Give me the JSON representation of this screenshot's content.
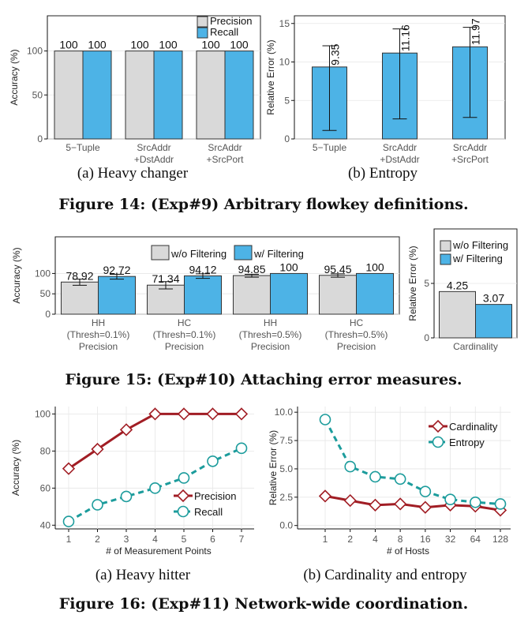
{
  "colors": {
    "gray": "#d9d9d9",
    "blue": "#4db3e6",
    "red": "#a11d24",
    "teal": "#1c9c9c"
  },
  "captions": {
    "fig14a": "(a) Heavy changer",
    "fig14b": "(b) Entropy",
    "fig14": "Figure 14: (Exp#9) Arbitrary flowkey definitions.",
    "fig15": "Figure 15: (Exp#10) Attaching error measures.",
    "fig16a": "(a) Heavy hitter",
    "fig16b": "(b) Cardinality and entropy",
    "fig16": "Figure 16: (Exp#11) Network-wide coordination."
  },
  "chart_data": [
    {
      "id": "fig14a",
      "type": "bar",
      "ylabel": "Accuracy (%)",
      "ylim": [
        0,
        140
      ],
      "yticks": [
        0,
        50,
        100
      ],
      "categories": [
        [
          "5−Tuple"
        ],
        [
          "SrcAddr",
          "+DstAddr"
        ],
        [
          "SrcAddr",
          "+SrcPort"
        ]
      ],
      "series": [
        {
          "name": "Precision",
          "color": "#d9d9d9",
          "values": [
            100,
            100,
            100
          ],
          "labels": [
            "100",
            "100",
            "100"
          ]
        },
        {
          "name": "Recall",
          "color": "#4db3e6",
          "values": [
            100,
            100,
            100
          ],
          "labels": [
            "100",
            "100",
            "100"
          ]
        }
      ],
      "legend": "top-right",
      "grid": true
    },
    {
      "id": "fig14b",
      "type": "bar",
      "ylabel": "Relative Error (%)",
      "ylim": [
        0,
        16
      ],
      "yticks": [
        0,
        5,
        10,
        15
      ],
      "categories": [
        [
          "5−Tuple"
        ],
        [
          "SrcAddr",
          "+DstAddr"
        ],
        [
          "SrcAddr",
          "+SrcPort"
        ]
      ],
      "series": [
        {
          "color": "#4db3e6",
          "values": [
            9.35,
            11.16,
            11.97
          ],
          "labels": [
            "9.35",
            "11.16",
            "11.97"
          ],
          "error_low": [
            1.1,
            2.6,
            2.8
          ],
          "error_high": [
            12.1,
            14.3,
            14.5
          ]
        }
      ],
      "grid": true
    },
    {
      "id": "fig15a",
      "type": "bar",
      "ylabel": "Accuracy (%)",
      "ylim": [
        0,
        190
      ],
      "yticks": [
        0,
        50,
        100
      ],
      "categories": [
        [
          "HH",
          "(Thresh=0.1%)",
          "Precision"
        ],
        [
          "HC",
          "(Thresh=0.1%)",
          "Precision"
        ],
        [
          "HH",
          "(Thresh=0.5%)",
          "Precision"
        ],
        [
          "HC",
          "(Thresh=0.5%)",
          "Precision"
        ]
      ],
      "series": [
        {
          "name": "w/o Filtering",
          "color": "#d9d9d9",
          "values": [
            78.92,
            71.34,
            94.85,
            95.45
          ],
          "labels": [
            "78.92",
            "71.34",
            "94.85",
            "95.45"
          ],
          "error_low": [
            71,
            62,
            91,
            91
          ],
          "error_high": [
            86,
            80,
            98,
            99
          ]
        },
        {
          "name": "w/ Filtering",
          "color": "#4db3e6",
          "values": [
            92.72,
            94.12,
            100,
            100
          ],
          "labels": [
            "92.72",
            "94.12",
            "100",
            "100"
          ],
          "error_low": [
            86,
            88,
            100,
            100
          ],
          "error_high": [
            98,
            99,
            100,
            100
          ]
        }
      ],
      "legend": "top",
      "grid": true
    },
    {
      "id": "fig15b",
      "type": "bar",
      "ylabel": "Relative Error (%)",
      "ylim": [
        0,
        10
      ],
      "yticks": [
        0,
        5
      ],
      "categories": [
        [
          "Cardinality"
        ]
      ],
      "series": [
        {
          "name": "w/o Filtering",
          "color": "#d9d9d9",
          "values": [
            4.25
          ],
          "labels": [
            "4.25"
          ]
        },
        {
          "name": "w/ Filtering",
          "color": "#4db3e6",
          "values": [
            3.07
          ],
          "labels": [
            "3.07"
          ]
        }
      ],
      "legend": "top",
      "grid": true
    },
    {
      "id": "fig16a",
      "type": "line",
      "xlabel": "# of Measurement Points",
      "ylabel": "Accuracy (%)",
      "x": [
        1,
        2,
        3,
        4,
        5,
        6,
        7
      ],
      "xticks": [
        "1",
        "2",
        "3",
        "4",
        "5",
        "6",
        "7"
      ],
      "ylim": [
        38,
        104
      ],
      "yticks": [
        40,
        60,
        80,
        100
      ],
      "series": [
        {
          "name": "Precision",
          "color": "#a11d24",
          "marker": "diamond",
          "style": "solid",
          "values": [
            70.5,
            81,
            91.5,
            100,
            100,
            100,
            100
          ]
        },
        {
          "name": "Recall",
          "color": "#1c9c9c",
          "marker": "circle",
          "style": "dashed",
          "values": [
            42,
            51,
            55.5,
            60,
            65.5,
            74.5,
            81.5
          ]
        }
      ],
      "legend": "bottom-right",
      "grid": true
    },
    {
      "id": "fig16b",
      "type": "line",
      "xlabel": "# of Hosts",
      "ylabel": "Relative Error (%)",
      "x": [
        1,
        2,
        4,
        8,
        16,
        32,
        64,
        128
      ],
      "xticks": [
        "1",
        "2",
        "4",
        "8",
        "16",
        "32",
        "64",
        "128"
      ],
      "ylim": [
        -0.3,
        10.5
      ],
      "yticks": [
        0,
        2.5,
        5,
        7.5,
        10
      ],
      "ytick_labels": [
        "0.0",
        "2.5",
        "5.0",
        "7.5",
        "10.0"
      ],
      "series": [
        {
          "name": "Cardinality",
          "color": "#a11d24",
          "marker": "diamond",
          "style": "solid",
          "values": [
            2.6,
            2.2,
            1.8,
            1.9,
            1.6,
            1.8,
            1.7,
            1.35
          ]
        },
        {
          "name": "Entropy",
          "color": "#1c9c9c",
          "marker": "circle",
          "style": "dashed",
          "values": [
            9.35,
            5.2,
            4.3,
            4.1,
            3.0,
            2.3,
            2.05,
            1.9
          ]
        }
      ],
      "legend": "top-right",
      "grid": true
    }
  ]
}
